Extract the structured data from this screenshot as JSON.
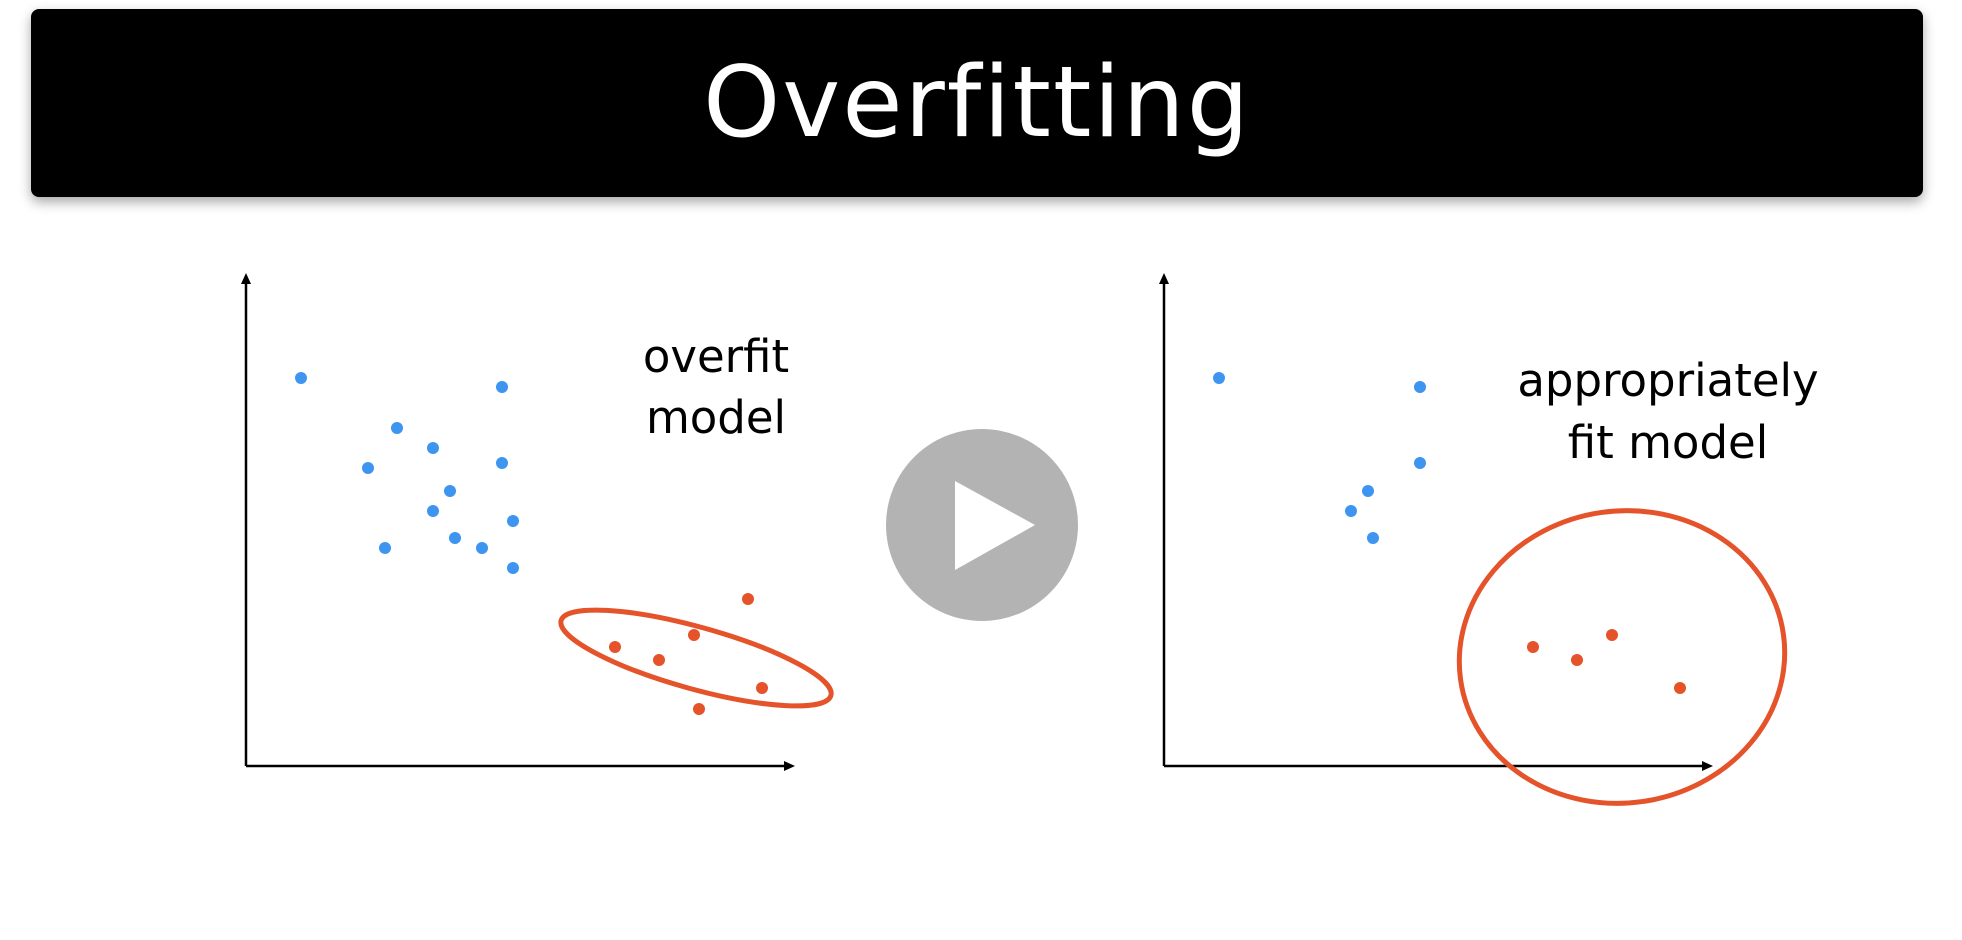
{
  "slide": {
    "title": "Overfitting"
  },
  "colors": {
    "title_bar": "#000000",
    "title_text": "#ffffff",
    "class_a": "#3d95f0",
    "class_b": "#e5532b",
    "axis": "#000000",
    "play_button_bg": "#b3b3b3",
    "play_button_icon": "#ffffff"
  },
  "panels": {
    "left": {
      "label_line1": "overfit",
      "label_line2": "model",
      "boundary_shape": "narrow tilted ellipse"
    },
    "right": {
      "label_line1": "appropriately",
      "label_line2": "fit model",
      "boundary_shape": "large ellipse"
    }
  },
  "player": {
    "control": "play-icon"
  }
}
